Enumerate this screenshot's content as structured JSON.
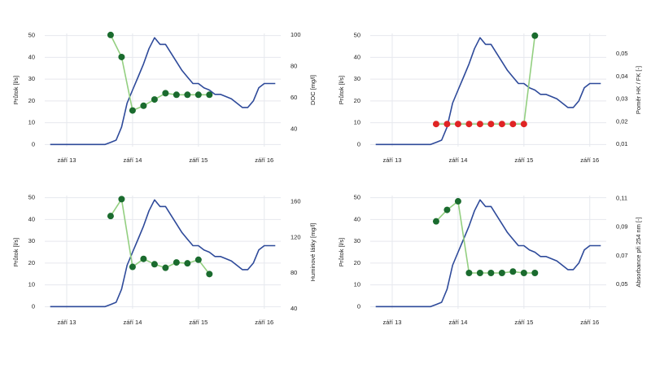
{
  "chart_data": [
    {
      "type": "line",
      "ylabel": "Průtok [l/s]",
      "y2label": "DOC [mg/l]",
      "xlim": [
        "2013-05",
        "2016-12"
      ],
      "xticks": [
        {
          "value": "2013-09",
          "label": "září 13"
        },
        {
          "value": "2014-09",
          "label": "září 14"
        },
        {
          "value": "2015-09",
          "label": "září 15"
        },
        {
          "value": "2016-09",
          "label": "září 16"
        }
      ],
      "ylim": [
        -1,
        51
      ],
      "yticks": [
        0,
        10,
        20,
        30,
        40,
        50
      ],
      "y2lim": [
        29,
        101
      ],
      "y2ticks": [
        40,
        60,
        80,
        100
      ],
      "grid": true,
      "series": [
        {
          "color": "#2e4a9a",
          "x": [
            "2013-06",
            "2013-07",
            "2013-08",
            "2013-09",
            "2013-10",
            "2013-11",
            "2013-12",
            "2014-01",
            "2014-02",
            "2014-03",
            "2014-04",
            "2014-05",
            "2014-06",
            "2014-07",
            "2014-08",
            "2014-09",
            "2014-10",
            "2014-11",
            "2014-12",
            "2015-01",
            "2015-02",
            "2015-03",
            "2015-04",
            "2015-05",
            "2015-06",
            "2015-07",
            "2015-08",
            "2015-09",
            "2015-10",
            "2015-11",
            "2015-12",
            "2016-01",
            "2016-02",
            "2016-03",
            "2016-04",
            "2016-05",
            "2016-06",
            "2016-07",
            "2016-08",
            "2016-09",
            "2016-10",
            "2016-11"
          ],
          "values": [
            0,
            0,
            0,
            0,
            0,
            0,
            0,
            0,
            0,
            0,
            0,
            1,
            2,
            8,
            19,
            25,
            31,
            37,
            44,
            49,
            46,
            46,
            42,
            38,
            34,
            31,
            28,
            28,
            26,
            25,
            23,
            23,
            22,
            21,
            19,
            17,
            17,
            20,
            26,
            28,
            28,
            28
          ]
        },
        {
          "axis": "y2",
          "color": "#1a6b2e",
          "line_color": "#93cf80",
          "x": [
            "2014-05",
            "2014-07",
            "2014-09",
            "2014-11",
            "2015-01",
            "2015-03",
            "2015-05",
            "2015-07",
            "2015-09",
            "2015-11"
          ],
          "values": [
            100,
            86,
            52,
            55,
            59,
            63,
            62,
            62,
            62,
            62
          ]
        }
      ]
    },
    {
      "type": "line",
      "ylabel": "Průtok [l/s]",
      "y2label": "Poměr HK / FK [-]",
      "xlim": [
        "2013-05",
        "2016-12"
      ],
      "xticks": [
        {
          "value": "2013-09",
          "label": "září 13"
        },
        {
          "value": "2014-09",
          "label": "září 14"
        },
        {
          "value": "2015-09",
          "label": "září 15"
        },
        {
          "value": "2016-09",
          "label": "září 16"
        }
      ],
      "ylim": [
        -1,
        51
      ],
      "yticks": [
        0,
        10,
        20,
        30,
        40,
        50
      ],
      "y2lim": [
        0.009,
        0.059
      ],
      "y2ticks": [
        {
          "value": 0.01,
          "label": "0,01"
        },
        {
          "value": 0.02,
          "label": "0,02"
        },
        {
          "value": 0.03,
          "label": "0,03"
        },
        {
          "value": 0.04,
          "label": "0,04"
        },
        {
          "value": 0.05,
          "label": "0,05"
        }
      ],
      "grid": true,
      "series": [
        {
          "color": "#2e4a9a",
          "x": [
            "2013-06",
            "2013-07",
            "2013-08",
            "2013-09",
            "2013-10",
            "2013-11",
            "2013-12",
            "2014-01",
            "2014-02",
            "2014-03",
            "2014-04",
            "2014-05",
            "2014-06",
            "2014-07",
            "2014-08",
            "2014-09",
            "2014-10",
            "2014-11",
            "2014-12",
            "2015-01",
            "2015-02",
            "2015-03",
            "2015-04",
            "2015-05",
            "2015-06",
            "2015-07",
            "2015-08",
            "2015-09",
            "2015-10",
            "2015-11",
            "2015-12",
            "2016-01",
            "2016-02",
            "2016-03",
            "2016-04",
            "2016-05",
            "2016-06",
            "2016-07",
            "2016-08",
            "2016-09",
            "2016-10",
            "2016-11"
          ],
          "values": [
            0,
            0,
            0,
            0,
            0,
            0,
            0,
            0,
            0,
            0,
            0,
            1,
            2,
            8,
            19,
            25,
            31,
            37,
            44,
            49,
            46,
            46,
            42,
            38,
            34,
            31,
            28,
            28,
            26,
            25,
            23,
            23,
            22,
            21,
            19,
            17,
            17,
            20,
            26,
            28,
            28,
            28
          ]
        },
        {
          "axis": "y2",
          "color": "#1a6b2e",
          "line_color": "#93cf80",
          "x": [
            "2014-05",
            "2014-07",
            "2014-09",
            "2014-11",
            "2015-01",
            "2015-03",
            "2015-05",
            "2015-07",
            "2015-09",
            "2015-11"
          ],
          "values": [
            0.019,
            0.019,
            0.019,
            0.019,
            0.019,
            0.019,
            0.019,
            0.019,
            0.019,
            0.058
          ],
          "point_colors": [
            "#e02424",
            "#e02424",
            "#e02424",
            "#e02424",
            "#e02424",
            "#e02424",
            "#e02424",
            "#e02424",
            "#e02424",
            "#1a6b2e"
          ]
        }
      ]
    },
    {
      "type": "line",
      "ylabel": "Průtok [l/s]",
      "y2label": "Huminové látky [mg/l]",
      "xlim": [
        "2013-05",
        "2016-12"
      ],
      "xticks": [
        {
          "value": "2013-09",
          "label": "září 13"
        },
        {
          "value": "2014-09",
          "label": "září 14"
        },
        {
          "value": "2015-09",
          "label": "září 15"
        },
        {
          "value": "2016-09",
          "label": "září 16"
        }
      ],
      "ylim": [
        -1,
        51
      ],
      "yticks": [
        0,
        10,
        20,
        30,
        40,
        50
      ],
      "y2lim": [
        40,
        167
      ],
      "y2ticks": [
        40,
        80,
        120,
        160
      ],
      "grid": true,
      "series": [
        {
          "color": "#2e4a9a",
          "x": [
            "2013-06",
            "2013-07",
            "2013-08",
            "2013-09",
            "2013-10",
            "2013-11",
            "2013-12",
            "2014-01",
            "2014-02",
            "2014-03",
            "2014-04",
            "2014-05",
            "2014-06",
            "2014-07",
            "2014-08",
            "2014-09",
            "2014-10",
            "2014-11",
            "2014-12",
            "2015-01",
            "2015-02",
            "2015-03",
            "2015-04",
            "2015-05",
            "2015-06",
            "2015-07",
            "2015-08",
            "2015-09",
            "2015-10",
            "2015-11",
            "2015-12",
            "2016-01",
            "2016-02",
            "2016-03",
            "2016-04",
            "2016-05",
            "2016-06",
            "2016-07",
            "2016-08",
            "2016-09",
            "2016-10",
            "2016-11"
          ],
          "values": [
            0,
            0,
            0,
            0,
            0,
            0,
            0,
            0,
            0,
            0,
            0,
            1,
            2,
            8,
            19,
            25,
            31,
            37,
            44,
            49,
            46,
            46,
            42,
            38,
            34,
            31,
            28,
            28,
            26,
            25,
            23,
            23,
            22,
            21,
            19,
            17,
            17,
            20,
            26,
            28,
            28,
            28
          ]
        },
        {
          "axis": "y2",
          "color": "#1a6b2e",
          "line_color": "#93cf80",
          "x": [
            "2014-05",
            "2014-07",
            "2014-09",
            "2014-11",
            "2015-01",
            "2015-03",
            "2015-05",
            "2015-07",
            "2015-09",
            "2015-11"
          ],
          "values": [
            144,
            163,
            87,
            96,
            90,
            86,
            92,
            91,
            95,
            79
          ]
        }
      ]
    },
    {
      "type": "line",
      "ylabel": "Průtok [l/s]",
      "y2label": "Absorbance při 254 nm [-]",
      "xlim": [
        "2013-05",
        "2016-12"
      ],
      "xticks": [
        {
          "value": "2013-09",
          "label": "září 13"
        },
        {
          "value": "2014-09",
          "label": "září 14"
        },
        {
          "value": "2015-09",
          "label": "září 15"
        },
        {
          "value": "2016-09",
          "label": "září 16"
        }
      ],
      "ylim": [
        -1,
        51
      ],
      "yticks": [
        0,
        10,
        20,
        30,
        40,
        50
      ],
      "y2lim": [
        0.033,
        0.112
      ],
      "y2ticks": [
        {
          "value": 0.05,
          "label": "0,05"
        },
        {
          "value": 0.07,
          "label": "0,07"
        },
        {
          "value": 0.09,
          "label": "0,09"
        },
        {
          "value": 0.11,
          "label": "0,11"
        }
      ],
      "grid": true,
      "series": [
        {
          "color": "#2e4a9a",
          "x": [
            "2013-06",
            "2013-07",
            "2013-08",
            "2013-09",
            "2013-10",
            "2013-11",
            "2013-12",
            "2014-01",
            "2014-02",
            "2014-03",
            "2014-04",
            "2014-05",
            "2014-06",
            "2014-07",
            "2014-08",
            "2014-09",
            "2014-10",
            "2014-11",
            "2014-12",
            "2015-01",
            "2015-02",
            "2015-03",
            "2015-04",
            "2015-05",
            "2015-06",
            "2015-07",
            "2015-08",
            "2015-09",
            "2015-10",
            "2015-11",
            "2015-12",
            "2016-01",
            "2016-02",
            "2016-03",
            "2016-04",
            "2016-05",
            "2016-06",
            "2016-07",
            "2016-08",
            "2016-09",
            "2016-10",
            "2016-11"
          ],
          "values": [
            0,
            0,
            0,
            0,
            0,
            0,
            0,
            0,
            0,
            0,
            0,
            1,
            2,
            8,
            19,
            25,
            31,
            37,
            44,
            49,
            46,
            46,
            42,
            38,
            34,
            31,
            28,
            28,
            26,
            25,
            23,
            23,
            22,
            21,
            19,
            17,
            17,
            20,
            26,
            28,
            28,
            28
          ]
        },
        {
          "axis": "y2",
          "color": "#1a6b2e",
          "line_color": "#93cf80",
          "x": [
            "2014-05",
            "2014-07",
            "2014-09",
            "2014-11",
            "2015-01",
            "2015-03",
            "2015-05",
            "2015-07",
            "2015-09",
            "2015-11"
          ],
          "values": [
            0.094,
            0.102,
            0.108,
            0.058,
            0.058,
            0.058,
            0.058,
            0.059,
            0.058,
            0.058
          ]
        }
      ]
    }
  ]
}
